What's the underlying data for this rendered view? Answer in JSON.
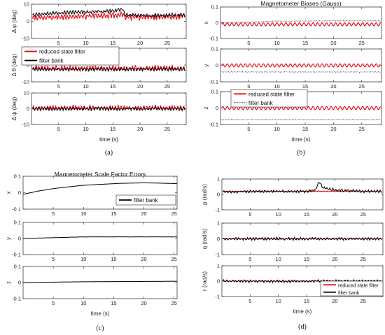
{
  "colors": {
    "red": "#e8000b",
    "black": "#000000",
    "dotted": "#333333",
    "axis": "#262626",
    "grid": "#ebebeb"
  },
  "chart_data": [
    {
      "id": "a",
      "type": "line",
      "caption": "(a)",
      "xlabel": "time (s)",
      "xticks": [
        5,
        10,
        15,
        20,
        25
      ],
      "xlim": [
        0,
        28.5
      ],
      "legend": {
        "location": "top-left of middle panel",
        "entries": [
          "reduced state filter",
          "filter bank"
        ]
      },
      "panels": [
        {
          "ylabel": "Δ φ (deg)",
          "ylim": [
            -10,
            10
          ],
          "yticks": [
            -10,
            0,
            10
          ],
          "series": [
            {
              "name": "reduced state filter",
              "color": "red",
              "x": [
                0.2,
                5,
                10,
                15,
                16.8,
                17.2,
                20,
                25,
                27.5,
                28.3
              ],
              "y": [
                2,
                2.5,
                3,
                3.5,
                4,
                2.5,
                2.3,
                2.5,
                3,
                2.5
              ]
            },
            {
              "name": "filter bank",
              "color": "black",
              "x": [
                0.2,
                5,
                10,
                15,
                16.8,
                17.2,
                20,
                25,
                27.5,
                28.3
              ],
              "y": [
                4,
                5,
                5.5,
                6,
                7,
                3.8,
                3.5,
                3.5,
                3.8,
                3.5
              ]
            }
          ]
        },
        {
          "ylabel": "Δ θ (deg)",
          "ylim": [
            -10,
            10
          ],
          "yticks": [
            -10,
            0,
            10
          ],
          "series": [
            {
              "name": "reduced state filter",
              "color": "red",
              "x": [
                0.2,
                10,
                20,
                28.3
              ],
              "y": [
                -2,
                -2,
                -2,
                -2
              ]
            },
            {
              "name": "filter bank",
              "color": "black",
              "x": [
                0.2,
                10,
                20,
                28.3
              ],
              "y": [
                -2.5,
                -2.5,
                -2.5,
                -2.5
              ]
            }
          ]
        },
        {
          "ylabel": "Δ ψ (deg)",
          "ylim": [
            -10,
            10
          ],
          "yticks": [
            -10,
            0,
            10
          ],
          "series": [
            {
              "name": "reduced state filter",
              "color": "red",
              "x": [
                0.2,
                10,
                20,
                28.3
              ],
              "y": [
                0.5,
                0.5,
                0.5,
                0.5
              ]
            },
            {
              "name": "filter bank",
              "color": "black",
              "x": [
                0.2,
                10,
                20,
                28.3
              ],
              "y": [
                0,
                0,
                0,
                0
              ]
            }
          ]
        }
      ]
    },
    {
      "id": "b",
      "type": "line",
      "caption": "(b)",
      "title": "Magnetometer Biases (Gauss)",
      "xlabel": "time (s)",
      "xticks": [
        5,
        10,
        15,
        20,
        25
      ],
      "xlim": [
        0,
        28.5
      ],
      "legend": {
        "location": "top-left of bottom panel",
        "entries": [
          "reduced state filter",
          "filter bank"
        ]
      },
      "panels": [
        {
          "ylabel": "x",
          "ylim": [
            -0.1,
            0.1
          ],
          "yticks": [
            -0.1,
            0,
            0.1
          ],
          "series": [
            {
              "name": "reduced state filter",
              "color": "red",
              "x": [
                0.2,
                10,
                20,
                28.3
              ],
              "y": [
                -0.01,
                -0.01,
                -0.01,
                -0.01
              ]
            },
            {
              "name": "filter bank",
              "color": "dotted",
              "x": [
                0.2,
                10,
                20,
                28.3
              ],
              "y": [
                0.0,
                0.01,
                0.012,
                0.012
              ]
            }
          ]
        },
        {
          "ylabel": "y",
          "ylim": [
            -0.1,
            0.1
          ],
          "yticks": [
            -0.1,
            0,
            0.1
          ],
          "series": [
            {
              "name": "reduced state filter",
              "color": "red",
              "x": [
                0.2,
                10,
                20,
                28.3
              ],
              "y": [
                0.0,
                0.0,
                0.0,
                0.0
              ]
            },
            {
              "name": "filter bank",
              "color": "dotted",
              "x": [
                0.2,
                10,
                20,
                28.3
              ],
              "y": [
                -0.04,
                -0.04,
                -0.04,
                -0.04
              ]
            }
          ]
        },
        {
          "ylabel": "z",
          "ylim": [
            -0.1,
            0.1
          ],
          "yticks": [
            -0.1,
            0,
            0.1
          ],
          "series": [
            {
              "name": "reduced state filter",
              "color": "red",
              "x": [
                0.2,
                10,
                20,
                28.3
              ],
              "y": [
                0.0,
                0.0,
                0.0,
                0.0
              ]
            },
            {
              "name": "filter bank",
              "color": "dotted",
              "x": [
                0.2,
                10,
                20,
                28.3
              ],
              "y": [
                -0.07,
                -0.07,
                -0.07,
                -0.07
              ]
            }
          ]
        }
      ]
    },
    {
      "id": "c",
      "type": "line",
      "caption": "(c)",
      "title": "Magnetometer Scale Factor Errors",
      "xlabel": "time (s)",
      "xticks": [
        5,
        10,
        15,
        20,
        25
      ],
      "xlim": [
        0,
        25.5
      ],
      "legend": {
        "location": "inside top panel, lower-right",
        "entries": [
          "filter bank"
        ]
      },
      "panels": [
        {
          "ylabel": "x",
          "ylim": [
            -0.1,
            0.1
          ],
          "yticks": [
            -0.1,
            0,
            0.1
          ],
          "series": [
            {
              "name": "filter bank",
              "color": "black",
              "x": [
                0,
                2.5,
                5,
                7.5,
                10,
                12.5,
                15,
                17.5,
                20,
                22.5,
                25.5
              ],
              "y": [
                -0.01,
                0.01,
                0.025,
                0.035,
                0.045,
                0.05,
                0.055,
                0.058,
                0.06,
                0.058,
                0.055
              ]
            }
          ]
        },
        {
          "ylabel": "y",
          "ylim": [
            -0.1,
            0.1
          ],
          "yticks": [
            -0.1,
            0,
            0.1
          ],
          "series": [
            {
              "name": "filter bank",
              "color": "black",
              "x": [
                0,
                10,
                25.5
              ],
              "y": [
                0.0,
                0.01,
                0.01
              ]
            }
          ]
        },
        {
          "ylabel": "z",
          "ylim": [
            -0.1,
            0.1
          ],
          "yticks": [
            -0.1,
            0,
            0.1
          ],
          "series": [
            {
              "name": "filter bank",
              "color": "black",
              "x": [
                0,
                10,
                25.5
              ],
              "y": [
                0.0,
                0.005,
                0.008
              ]
            }
          ]
        }
      ]
    },
    {
      "id": "d",
      "type": "line",
      "caption": "(d)",
      "xlabel": "time (s)",
      "xticks": [
        5,
        10,
        15,
        20,
        25
      ],
      "xlim": [
        0,
        28.5
      ],
      "legend": {
        "location": "top-right of bottom panel",
        "entries": [
          "reduced state filter",
          "filter bank"
        ]
      },
      "panels": [
        {
          "ylabel": "p (rad/s)",
          "ylim": [
            -1,
            1
          ],
          "yticks": [
            -1,
            0,
            1
          ],
          "series": [
            {
              "name": "reduced state filter",
              "color": "red",
              "x": [
                0.2,
                10,
                20,
                28.3
              ],
              "y": [
                0.2,
                0.2,
                0.2,
                0.2
              ]
            },
            {
              "name": "filter bank",
              "color": "black",
              "x": [
                0.2,
                5,
                10,
                15,
                16.6,
                17.2,
                17.8,
                20,
                25,
                28.3
              ],
              "y": [
                0.15,
                0.2,
                0.2,
                0.2,
                0.3,
                0.85,
                0.45,
                0.3,
                0.2,
                0.2
              ]
            }
          ]
        },
        {
          "ylabel": "q (rad/s)",
          "ylim": [
            -1,
            1
          ],
          "yticks": [
            -1,
            0,
            1
          ],
          "series": [
            {
              "name": "reduced state filter",
              "color": "red",
              "x": [
                0.2,
                10,
                20,
                28.3
              ],
              "y": [
                0.0,
                0.0,
                0.0,
                0.0
              ]
            },
            {
              "name": "filter bank",
              "color": "black",
              "x": [
                0.2,
                10,
                20,
                28.3
              ],
              "y": [
                0.0,
                0.0,
                0.0,
                0.0
              ]
            }
          ]
        },
        {
          "ylabel": "r (rad/s)",
          "ylim": [
            -1,
            1
          ],
          "yticks": [
            -1,
            0,
            1
          ],
          "series": [
            {
              "name": "reduced state filter",
              "color": "red",
              "x": [
                0.2,
                10,
                20,
                28.3
              ],
              "y": [
                0.0,
                0.0,
                0.0,
                0.0
              ]
            },
            {
              "name": "filter bank",
              "color": "black",
              "x": [
                0.2,
                10,
                20,
                28.3
              ],
              "y": [
                0.0,
                0.0,
                0.0,
                0.0
              ]
            }
          ]
        }
      ]
    }
  ]
}
